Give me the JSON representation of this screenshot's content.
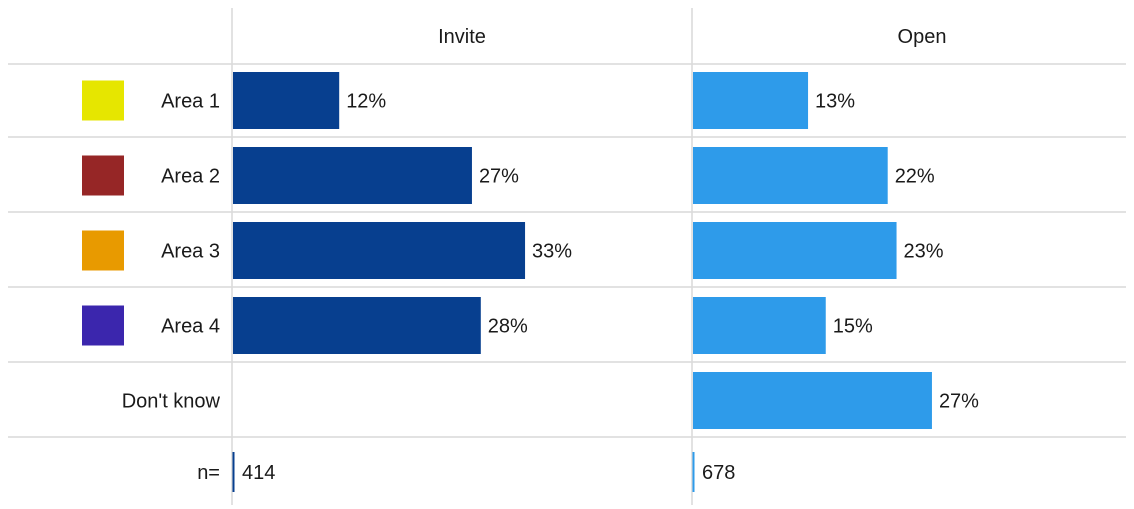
{
  "chart_data": {
    "type": "bar",
    "columns": [
      "Invite",
      "Open"
    ],
    "rows": [
      {
        "label": "Area 1",
        "swatch": "#e6e600",
        "values": [
          12,
          13
        ]
      },
      {
        "label": "Area 2",
        "swatch": "#962626",
        "values": [
          27,
          22
        ]
      },
      {
        "label": "Area 3",
        "swatch": "#e89a00",
        "values": [
          33,
          23
        ]
      },
      {
        "label": "Area 4",
        "swatch": "#3b26ad",
        "values": [
          28,
          15
        ]
      },
      {
        "label": "Don't know",
        "swatch": null,
        "values": [
          null,
          27
        ]
      }
    ],
    "n_label": "n=",
    "n_values": [
      "414",
      "678"
    ],
    "value_suffix": "%",
    "xlim": [
      0,
      100
    ],
    "series_colors": [
      "#073f8f",
      "#2e9bea"
    ]
  }
}
